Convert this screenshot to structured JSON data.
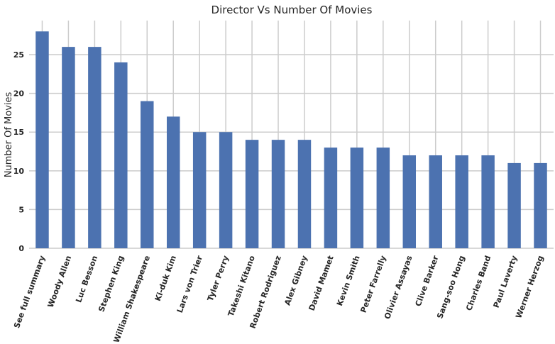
{
  "chart_data": {
    "type": "bar",
    "title": "Director Vs Number Of Movies",
    "xlabel": "",
    "ylabel": "Number Of Movies",
    "categories": [
      "See full summary",
      "Woody Allen",
      "Luc Besson",
      "Stephen King",
      "William Shakespeare",
      "Ki-duk Kim",
      "Lars von Trier",
      "Tyler Perry",
      "Takeshi Kitano",
      "Robert Rodriguez",
      "Alex Gibney",
      "David Mamet",
      "Kevin Smith",
      "Peter Farrelly",
      "Olivier Assayas",
      "Clive Barker",
      "Sang-soo Hong",
      "Charles Band",
      "Paul Laverty",
      "Werner Herzog"
    ],
    "values": [
      28,
      26,
      26,
      24,
      19,
      17,
      15,
      15,
      14,
      14,
      14,
      13,
      13,
      13,
      12,
      12,
      12,
      12,
      11,
      11
    ],
    "ylim": [
      0,
      29.4
    ],
    "yticks": [
      0,
      5,
      10,
      15,
      20,
      25
    ],
    "grid": true,
    "bar_color": "#4c72b0",
    "grid_color": "#cccccc"
  }
}
